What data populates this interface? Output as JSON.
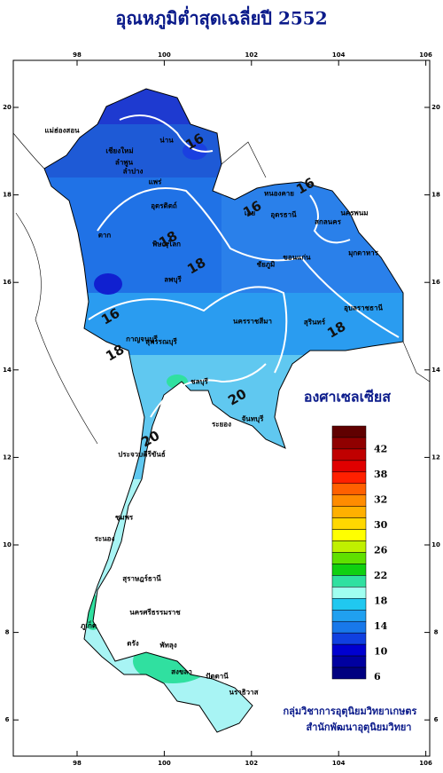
{
  "title": "อุณหภูมิต่ำสุดเฉลี่ยปี 2552",
  "axes": {
    "lon_ticks": [
      98,
      100,
      102,
      104,
      106
    ],
    "lat_ticks": [
      20,
      18,
      16,
      14,
      12,
      10,
      8,
      6
    ]
  },
  "legend": {
    "title": "องศาเซลเซียส",
    "labels": [
      42,
      38,
      32,
      30,
      26,
      22,
      18,
      14,
      10,
      6
    ],
    "colors": [
      "#600000",
      "#900000",
      "#c00000",
      "#e00000",
      "#ff2000",
      "#ff6000",
      "#ff8c00",
      "#ffb000",
      "#ffd800",
      "#ffff00",
      "#c0f000",
      "#60e000",
      "#10d010",
      "#30e0a0",
      "#a0fff0",
      "#20c8f0",
      "#20a0f0",
      "#1878ea",
      "#1040e0",
      "#0000d0",
      "#0000a0",
      "#000080"
    ]
  },
  "contour_labels": [
    "16",
    "16",
    "18",
    "16",
    "18",
    "18",
    "16",
    "18",
    "20",
    "20"
  ],
  "provinces": [
    "แม่ฮ่องสอน",
    "เชียงใหม่",
    "ลำพูน",
    "ลำปาง",
    "น่าน",
    "แพร่",
    "อุตรดิตถ์",
    "ตาก",
    "พิษณุโลก",
    "หนองคาย",
    "อุดรธานี",
    "เลย",
    "สกลนคร",
    "นครพนม",
    "มุกดาหาร",
    "ขอนแก่น",
    "ชัยภูมิ",
    "นครราชสีมา",
    "อุบลราชธานี",
    "สุรินทร์",
    "ลพบุรี",
    "กาญจนบุรี",
    "สุพรรณบุรี",
    "ชลบุรี",
    "ระยอง",
    "จันทบุรี",
    "ประจวบคีรีขันธ์",
    "ชุมพร",
    "ระนอง",
    "สุราษฎร์ธานี",
    "นครศรีธรรมราช",
    "ภูเก็ต",
    "ตรัง",
    "พัทลุง",
    "สงขลา",
    "ปัตตานี",
    "นราธิวาส"
  ],
  "credits": [
    "กลุ่มวิชาการอุตุนิยมวิทยาเกษตร",
    "สำนักพัฒนาอุตุนิยมวิทยา"
  ]
}
